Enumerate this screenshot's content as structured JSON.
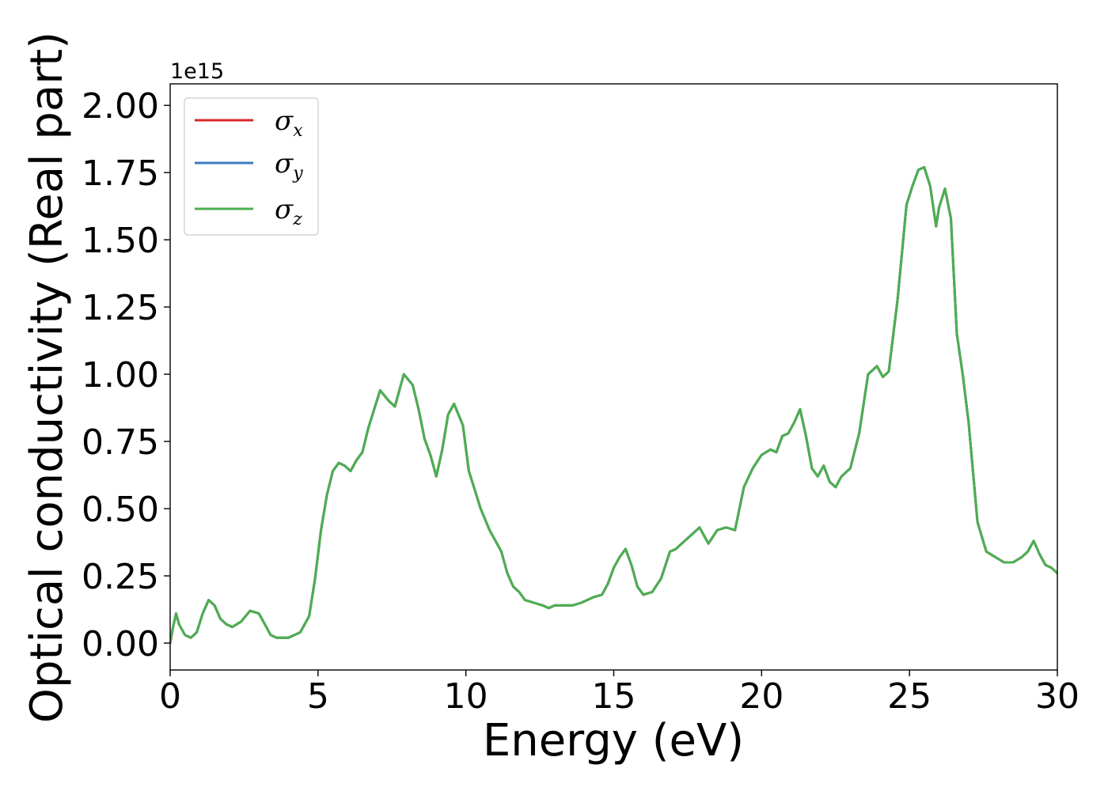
{
  "chart_data": {
    "type": "line",
    "title": "",
    "xlabel": "Energy (eV)",
    "ylabel": "Optical conductivity (Real part)",
    "y_offset_label": "1e15",
    "xlim": [
      0,
      30
    ],
    "ylim": [
      -0.1,
      2.08
    ],
    "y_unit_multiplier": 1000000000000000.0,
    "grid": false,
    "legend_position": "top-left",
    "x_ticks": [
      0,
      5,
      10,
      15,
      20,
      25,
      30
    ],
    "x_tick_labels": [
      "0",
      "5",
      "10",
      "15",
      "20",
      "25",
      "30"
    ],
    "y_ticks": [
      0,
      0.25,
      0.5,
      0.75,
      1.0,
      1.25,
      1.5,
      1.75,
      2.0
    ],
    "y_tick_labels": [
      "0.00",
      "0.25",
      "0.50",
      "0.75",
      "1.00",
      "1.25",
      "1.50",
      "1.75",
      "2.00"
    ],
    "legend": [
      {
        "symbol": "σ",
        "subscript": "x",
        "color": "#d62728"
      },
      {
        "symbol": "σ",
        "subscript": "y",
        "color": "#3a7bbf"
      },
      {
        "symbol": "σ",
        "subscript": "z",
        "color": "#4caf50"
      }
    ],
    "x": [
      0,
      0.1,
      0.2,
      0.3,
      0.5,
      0.7,
      0.9,
      1.1,
      1.3,
      1.5,
      1.7,
      1.9,
      2.1,
      2.4,
      2.7,
      3.0,
      3.2,
      3.4,
      3.6,
      4.0,
      4.4,
      4.7,
      4.9,
      5.1,
      5.3,
      5.5,
      5.7,
      5.9,
      6.1,
      6.3,
      6.5,
      6.7,
      6.9,
      7.1,
      7.4,
      7.6,
      7.9,
      8.2,
      8.4,
      8.6,
      8.8,
      9.0,
      9.2,
      9.4,
      9.6,
      9.9,
      10.1,
      10.3,
      10.5,
      10.8,
      11.2,
      11.4,
      11.6,
      11.8,
      12.0,
      12.3,
      12.6,
      12.8,
      13.0,
      13.3,
      13.6,
      13.9,
      14.1,
      14.3,
      14.6,
      14.8,
      15.0,
      15.2,
      15.4,
      15.6,
      15.8,
      16.0,
      16.3,
      16.6,
      16.9,
      17.1,
      17.3,
      17.6,
      17.9,
      18.2,
      18.5,
      18.8,
      19.1,
      19.4,
      19.7,
      20.0,
      20.3,
      20.5,
      20.7,
      20.9,
      21.1,
      21.3,
      21.5,
      21.7,
      21.9,
      22.1,
      22.3,
      22.5,
      22.7,
      23.0,
      23.3,
      23.6,
      23.9,
      24.1,
      24.3,
      24.6,
      24.9,
      25.1,
      25.3,
      25.5,
      25.7,
      25.9,
      26.0,
      26.2,
      26.4,
      26.6,
      26.8,
      27.0,
      27.3,
      27.6,
      27.9,
      28.2,
      28.5,
      28.8,
      29.0,
      29.2,
      29.4,
      29.6,
      29.8,
      30.0
    ],
    "series": [
      {
        "name": "σx",
        "color": "#d62728"
      },
      {
        "name": "σy",
        "color": "#3a7bbf"
      },
      {
        "name": "σz",
        "color": "#4caf50",
        "values": [
          0.0,
          0.06,
          0.11,
          0.07,
          0.03,
          0.02,
          0.04,
          0.11,
          0.16,
          0.14,
          0.09,
          0.07,
          0.06,
          0.08,
          0.12,
          0.11,
          0.07,
          0.03,
          0.02,
          0.02,
          0.04,
          0.1,
          0.24,
          0.42,
          0.55,
          0.64,
          0.67,
          0.66,
          0.64,
          0.68,
          0.71,
          0.8,
          0.87,
          0.94,
          0.9,
          0.88,
          1.0,
          0.96,
          0.87,
          0.76,
          0.7,
          0.62,
          0.72,
          0.85,
          0.89,
          0.81,
          0.64,
          0.57,
          0.5,
          0.42,
          0.34,
          0.26,
          0.21,
          0.19,
          0.16,
          0.15,
          0.14,
          0.13,
          0.14,
          0.14,
          0.14,
          0.15,
          0.16,
          0.17,
          0.18,
          0.22,
          0.28,
          0.32,
          0.35,
          0.29,
          0.21,
          0.18,
          0.19,
          0.24,
          0.34,
          0.35,
          0.37,
          0.4,
          0.43,
          0.37,
          0.42,
          0.43,
          0.42,
          0.58,
          0.65,
          0.7,
          0.72,
          0.71,
          0.77,
          0.78,
          0.82,
          0.87,
          0.77,
          0.65,
          0.62,
          0.66,
          0.6,
          0.58,
          0.62,
          0.65,
          0.78,
          1.0,
          1.03,
          0.99,
          1.01,
          1.28,
          1.63,
          1.7,
          1.76,
          1.77,
          1.7,
          1.55,
          1.62,
          1.69,
          1.58,
          1.15,
          1.0,
          0.82,
          0.45,
          0.34,
          0.32,
          0.3,
          0.3,
          0.32,
          0.34,
          0.38,
          0.33,
          0.29,
          0.28,
          0.26
        ]
      }
    ]
  }
}
